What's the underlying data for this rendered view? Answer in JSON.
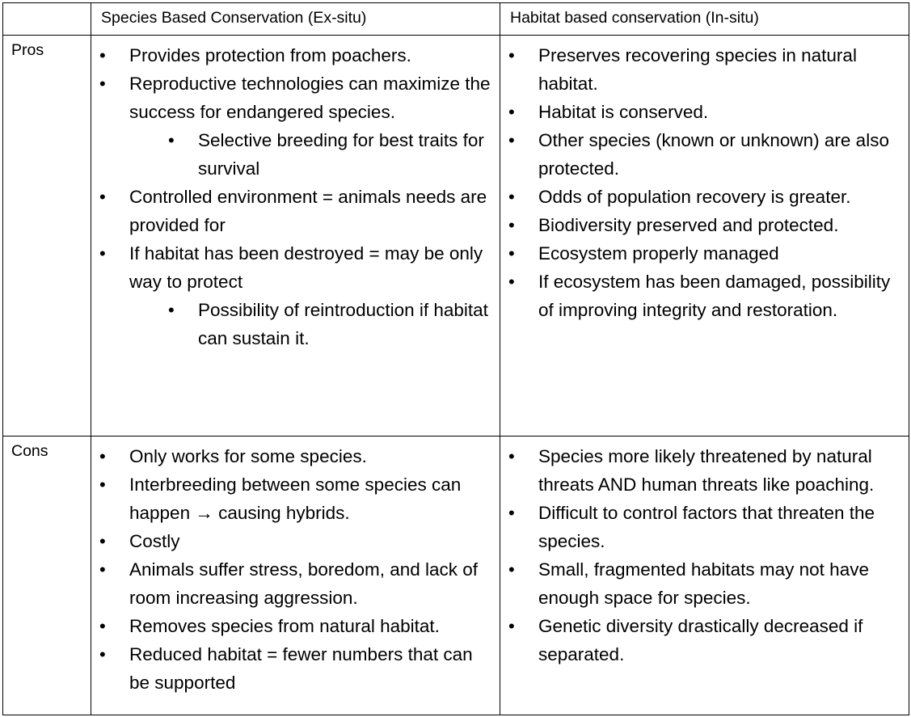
{
  "headers": {
    "corner": "",
    "species_col": "Species Based Conservation (Ex-situ)",
    "habitat_col": "Habitat based conservation (In-situ)"
  },
  "pros": {
    "label": "Pros",
    "ex_situ": [
      {
        "text": "Provides protection from poachers.",
        "sub": []
      },
      {
        "text": "Reproductive technologies can maximize the success for endangered species.",
        "sub": [
          "Selective breeding for best traits for survival"
        ]
      },
      {
        "text": "Controlled environment = animals needs are provided for",
        "sub": []
      },
      {
        "text": "If habitat has been destroyed = may be only way to protect",
        "sub": [
          "Possibility of reintroduction if habitat can sustain it."
        ]
      }
    ],
    "in_situ": [
      {
        "text": "Preserves recovering species in natural habitat."
      },
      {
        "text": "Habitat is conserved."
      },
      {
        "text": "Other species (known or unknown) are also protected."
      },
      {
        "text": "Odds of population recovery is greater."
      },
      {
        "text": "Biodiversity preserved and protected."
      },
      {
        "text": "Ecosystem properly managed"
      },
      {
        "text": "If ecosystem has been damaged, possibility of improving integrity and restoration."
      }
    ]
  },
  "cons": {
    "label": "Cons",
    "ex_situ": [
      {
        "text": "Only works for some species."
      },
      {
        "pre": "Interbreeding between some species can happen ",
        "arrow": "→",
        "post": " causing hybrids."
      },
      {
        "text": "Costly"
      },
      {
        "text": "Animals suffer stress, boredom, and lack of room increasing aggression."
      },
      {
        "text": "Removes species from natural habitat."
      },
      {
        "text": "Reduced habitat = fewer numbers that can be supported"
      }
    ],
    "in_situ": [
      {
        "text": "Species more likely threatened by natural threats AND human threats like poaching."
      },
      {
        "text": "Difficult to control factors that threaten the species."
      },
      {
        "text": "Small, fragmented habitats may not have enough space for species."
      },
      {
        "text": "Genetic diversity drastically decreased if separated."
      }
    ]
  }
}
